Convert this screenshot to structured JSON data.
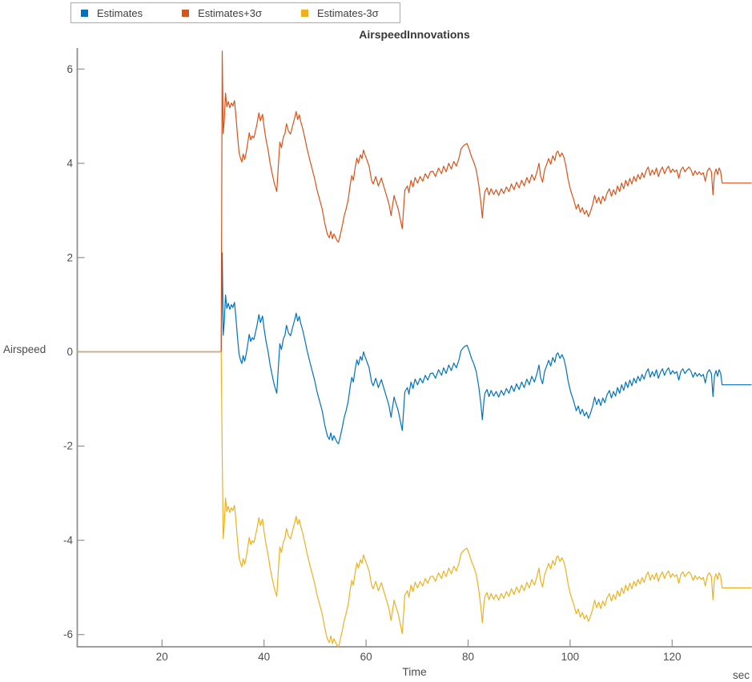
{
  "title": "AirspeedInnovations",
  "legend": {
    "items": [
      {
        "label": "Estimates",
        "color": "#0072BD"
      },
      {
        "label": "Estimates+3σ",
        "color": "#D95319"
      },
      {
        "label": "Estimates-3σ",
        "color": "#EDB120"
      }
    ]
  },
  "axes": {
    "ylabel": "Airspeed",
    "xlabel": "Time",
    "x_unit": "sec"
  },
  "chart_data": {
    "type": "line",
    "title": "AirspeedInnovations",
    "xlabel": "Time",
    "ylabel": "Airspeed",
    "x_unit": "sec",
    "xlim": [
      3.4,
      135.5
    ],
    "ylim": [
      -6.26,
      6.45
    ],
    "x_ticks": [
      20,
      40,
      60,
      80,
      100,
      120
    ],
    "y_ticks": [
      6,
      4,
      2,
      0,
      -2,
      -4,
      -6
    ],
    "grid": false,
    "legend_position": "top-left-horizontal",
    "note": "All three curves are 0 until t≈31.6 s, then jump; ±3σ bands run parallel to the estimate (offset applied for t > offsets_start_t).",
    "offsets_start_t": 31.65,
    "base": [
      [
        3.4,
        0
      ],
      [
        31.6,
        0
      ],
      [
        31.8,
        2.1
      ],
      [
        32.0,
        0.35
      ],
      [
        32.2,
        0.62
      ],
      [
        32.45,
        1.21
      ],
      [
        32.7,
        0.92
      ],
      [
        33.0,
        1.03
      ],
      [
        33.3,
        0.9
      ],
      [
        33.6,
        1.0
      ],
      [
        33.9,
        0.94
      ],
      [
        34.2,
        1.05
      ],
      [
        34.5,
        0.7
      ],
      [
        34.8,
        0.3
      ],
      [
        35.1,
        -0.05
      ],
      [
        35.4,
        -0.18
      ],
      [
        35.65,
        -0.25
      ],
      [
        35.9,
        -0.08
      ],
      [
        36.2,
        -0.2
      ],
      [
        36.5,
        -0.05
      ],
      [
        36.8,
        0.15
      ],
      [
        37.1,
        0.37
      ],
      [
        37.4,
        0.22
      ],
      [
        37.7,
        0.3
      ],
      [
        38.0,
        0.26
      ],
      [
        38.3,
        0.4
      ],
      [
        38.6,
        0.55
      ],
      [
        39.0,
        0.79
      ],
      [
        39.3,
        0.62
      ],
      [
        39.7,
        0.76
      ],
      [
        40.0,
        0.5
      ],
      [
        40.4,
        0.22
      ],
      [
        40.8,
        0.0
      ],
      [
        41.2,
        -0.28
      ],
      [
        41.6,
        -0.5
      ],
      [
        42.0,
        -0.7
      ],
      [
        42.5,
        -0.88
      ],
      [
        42.8,
        -0.35
      ],
      [
        43.1,
        0.17
      ],
      [
        43.4,
        0.05
      ],
      [
        43.8,
        0.28
      ],
      [
        44.1,
        0.35
      ],
      [
        44.4,
        0.56
      ],
      [
        44.8,
        0.4
      ],
      [
        45.2,
        0.34
      ],
      [
        45.6,
        0.52
      ],
      [
        46.0,
        0.68
      ],
      [
        46.3,
        0.82
      ],
      [
        46.6,
        0.65
      ],
      [
        46.9,
        0.75
      ],
      [
        47.2,
        0.6
      ],
      [
        47.6,
        0.45
      ],
      [
        48.0,
        0.25
      ],
      [
        48.5,
        0.0
      ],
      [
        49.0,
        -0.22
      ],
      [
        49.4,
        -0.39
      ],
      [
        49.9,
        -0.6
      ],
      [
        50.4,
        -0.85
      ],
      [
        50.9,
        -1.05
      ],
      [
        51.4,
        -1.25
      ],
      [
        51.9,
        -1.55
      ],
      [
        52.4,
        -1.78
      ],
      [
        52.8,
        -1.86
      ],
      [
        53.1,
        -1.72
      ],
      [
        53.4,
        -1.88
      ],
      [
        53.7,
        -1.78
      ],
      [
        54.0,
        -1.85
      ],
      [
        54.3,
        -1.92
      ],
      [
        54.6,
        -1.95
      ],
      [
        54.9,
        -1.82
      ],
      [
        55.3,
        -1.62
      ],
      [
        55.7,
        -1.4
      ],
      [
        56.1,
        -1.24
      ],
      [
        56.5,
        -1.05
      ],
      [
        56.9,
        -0.72
      ],
      [
        57.2,
        -0.54
      ],
      [
        57.5,
        -0.64
      ],
      [
        57.9,
        -0.35
      ],
      [
        58.2,
        -0.17
      ],
      [
        58.5,
        -0.28
      ],
      [
        58.9,
        -0.1
      ],
      [
        59.2,
        -0.18
      ],
      [
        59.5,
        0.0
      ],
      [
        59.8,
        -0.1
      ],
      [
        60.2,
        -0.22
      ],
      [
        60.6,
        -0.34
      ],
      [
        61.1,
        -0.65
      ],
      [
        61.4,
        -0.72
      ],
      [
        61.9,
        -0.56
      ],
      [
        62.4,
        -0.76
      ],
      [
        63.0,
        -0.59
      ],
      [
        63.5,
        -0.78
      ],
      [
        64.0,
        -0.96
      ],
      [
        64.5,
        -1.15
      ],
      [
        64.9,
        -1.39
      ],
      [
        65.5,
        -0.96
      ],
      [
        65.8,
        -1.08
      ],
      [
        66.3,
        -1.25
      ],
      [
        67.1,
        -1.67
      ],
      [
        67.6,
        -0.85
      ],
      [
        68.1,
        -0.76
      ],
      [
        68.4,
        -0.9
      ],
      [
        68.8,
        -0.64
      ],
      [
        69.2,
        -0.78
      ],
      [
        69.6,
        -0.58
      ],
      [
        70.1,
        -0.7
      ],
      [
        70.6,
        -0.56
      ],
      [
        71.1,
        -0.66
      ],
      [
        71.6,
        -0.5
      ],
      [
        72.1,
        -0.6
      ],
      [
        72.6,
        -0.46
      ],
      [
        73.1,
        -0.45
      ],
      [
        73.6,
        -0.56
      ],
      [
        74.2,
        -0.38
      ],
      [
        74.8,
        -0.5
      ],
      [
        75.2,
        -0.34
      ],
      [
        75.7,
        -0.46
      ],
      [
        76.2,
        -0.28
      ],
      [
        76.7,
        -0.4
      ],
      [
        77.2,
        -0.24
      ],
      [
        77.7,
        -0.34
      ],
      [
        78.2,
        -0.18
      ],
      [
        78.6,
        0.02
      ],
      [
        79.0,
        0.08
      ],
      [
        79.4,
        0.12
      ],
      [
        79.8,
        0.14
      ],
      [
        80.2,
        0.02
      ],
      [
        80.7,
        -0.15
      ],
      [
        81.1,
        -0.25
      ],
      [
        81.6,
        -0.42
      ],
      [
        82.1,
        -0.75
      ],
      [
        82.5,
        -1.1
      ],
      [
        82.8,
        -1.44
      ],
      [
        83.1,
        -1.05
      ],
      [
        83.3,
        -0.88
      ],
      [
        83.7,
        -0.8
      ],
      [
        84.1,
        -0.95
      ],
      [
        84.5,
        -0.82
      ],
      [
        85.0,
        -0.94
      ],
      [
        85.5,
        -0.84
      ],
      [
        86.0,
        -0.96
      ],
      [
        86.5,
        -0.82
      ],
      [
        87.0,
        -0.92
      ],
      [
        87.5,
        -0.78
      ],
      [
        88.0,
        -0.88
      ],
      [
        88.5,
        -0.72
      ],
      [
        89.0,
        -0.84
      ],
      [
        89.5,
        -0.68
      ],
      [
        90.0,
        -0.8
      ],
      [
        90.5,
        -0.64
      ],
      [
        91.0,
        -0.76
      ],
      [
        91.5,
        -0.58
      ],
      [
        92.0,
        -0.7
      ],
      [
        92.5,
        -0.52
      ],
      [
        93.0,
        -0.64
      ],
      [
        93.5,
        -0.46
      ],
      [
        93.9,
        -0.28
      ],
      [
        94.2,
        -0.55
      ],
      [
        94.6,
        -0.68
      ],
      [
        95.0,
        -0.42
      ],
      [
        95.4,
        -0.3
      ],
      [
        95.8,
        -0.18
      ],
      [
        96.2,
        -0.3
      ],
      [
        96.6,
        -0.12
      ],
      [
        97.0,
        -0.22
      ],
      [
        97.3,
        -0.06
      ],
      [
        97.6,
        -0.02
      ],
      [
        98.0,
        -0.14
      ],
      [
        98.4,
        -0.06
      ],
      [
        98.8,
        -0.16
      ],
      [
        99.2,
        -0.35
      ],
      [
        99.6,
        -0.62
      ],
      [
        100.1,
        -0.85
      ],
      [
        100.7,
        -1.05
      ],
      [
        101.2,
        -1.25
      ],
      [
        101.6,
        -1.15
      ],
      [
        102.0,
        -1.32
      ],
      [
        102.4,
        -1.22
      ],
      [
        102.8,
        -1.36
      ],
      [
        103.2,
        -1.28
      ],
      [
        103.6,
        -1.41
      ],
      [
        104.0,
        -1.3
      ],
      [
        104.4,
        -1.16
      ],
      [
        104.8,
        -0.96
      ],
      [
        105.2,
        -1.12
      ],
      [
        105.6,
        -1.0
      ],
      [
        106.0,
        -1.14
      ],
      [
        106.4,
        -0.98
      ],
      [
        106.8,
        -1.08
      ],
      [
        107.2,
        -0.92
      ],
      [
        107.7,
        -0.82
      ],
      [
        108.1,
        -0.98
      ],
      [
        108.5,
        -0.84
      ],
      [
        108.9,
        -0.94
      ],
      [
        109.3,
        -0.76
      ],
      [
        109.7,
        -0.88
      ],
      [
        110.1,
        -0.7
      ],
      [
        110.5,
        -0.82
      ],
      [
        110.9,
        -0.64
      ],
      [
        111.3,
        -0.76
      ],
      [
        111.7,
        -0.6
      ],
      [
        112.1,
        -0.72
      ],
      [
        112.5,
        -0.56
      ],
      [
        112.9,
        -0.66
      ],
      [
        113.3,
        -0.52
      ],
      [
        113.7,
        -0.62
      ],
      [
        114.1,
        -0.48
      ],
      [
        114.5,
        -0.58
      ],
      [
        114.9,
        -0.44
      ],
      [
        115.3,
        -0.36
      ],
      [
        115.7,
        -0.54
      ],
      [
        116.1,
        -0.42
      ],
      [
        116.5,
        -0.52
      ],
      [
        116.9,
        -0.38
      ],
      [
        117.3,
        -0.56
      ],
      [
        117.7,
        -0.44
      ],
      [
        118.1,
        -0.36
      ],
      [
        118.5,
        -0.5
      ],
      [
        118.9,
        -0.4
      ],
      [
        119.3,
        -0.34
      ],
      [
        119.7,
        -0.48
      ],
      [
        120.1,
        -0.4
      ],
      [
        120.5,
        -0.46
      ],
      [
        120.9,
        -0.42
      ],
      [
        121.3,
        -0.6
      ],
      [
        121.7,
        -0.42
      ],
      [
        122.1,
        -0.36
      ],
      [
        122.5,
        -0.46
      ],
      [
        122.9,
        -0.4
      ],
      [
        123.3,
        -0.36
      ],
      [
        123.7,
        -0.42
      ],
      [
        124.1,
        -0.54
      ],
      [
        124.5,
        -0.44
      ],
      [
        124.9,
        -0.52
      ],
      [
        125.3,
        -0.46
      ],
      [
        125.7,
        -0.52
      ],
      [
        126.1,
        -0.48
      ],
      [
        126.5,
        -0.66
      ],
      [
        126.9,
        -0.44
      ],
      [
        127.3,
        -0.38
      ],
      [
        127.7,
        -0.46
      ],
      [
        128.0,
        -0.95
      ],
      [
        128.3,
        -0.5
      ],
      [
        128.6,
        -0.4
      ],
      [
        128.9,
        -0.52
      ],
      [
        129.2,
        -0.38
      ],
      [
        129.5,
        -0.45
      ],
      [
        129.8,
        -0.7
      ],
      [
        135.5,
        -0.7
      ]
    ],
    "series": [
      {
        "name": "Estimates",
        "color": "#0072BD",
        "offset": 0
      },
      {
        "name": "Estimates+3σ",
        "color": "#D95319",
        "offset": 4.28
      },
      {
        "name": "Estimates-3σ",
        "color": "#EDB120",
        "offset": -4.31
      }
    ]
  },
  "style": {
    "axis_color": "#909090",
    "tick_label_color": "#4d4d4d",
    "title_color": "#383838"
  }
}
